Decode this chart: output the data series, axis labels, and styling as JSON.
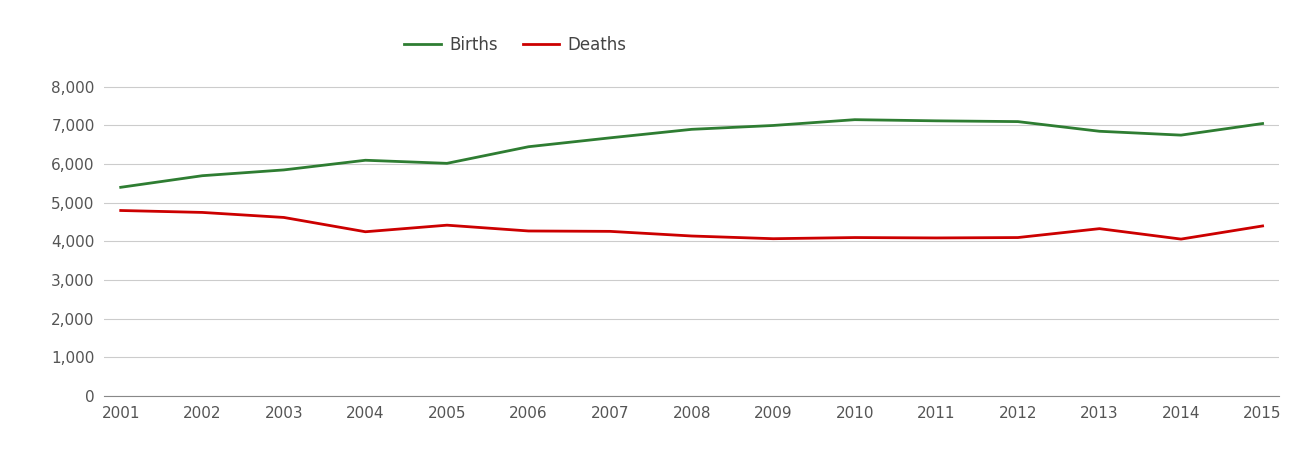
{
  "years": [
    2001,
    2002,
    2003,
    2004,
    2005,
    2006,
    2007,
    2008,
    2009,
    2010,
    2011,
    2012,
    2013,
    2014,
    2015
  ],
  "births": [
    5400,
    5700,
    5850,
    6100,
    6020,
    6450,
    6680,
    6900,
    7000,
    7150,
    7120,
    7100,
    6850,
    6750,
    7050
  ],
  "deaths": [
    4800,
    4750,
    4620,
    4250,
    4420,
    4270,
    4260,
    4140,
    4070,
    4100,
    4090,
    4100,
    4330,
    4060,
    4400
  ],
  "births_color": "#2e7d32",
  "deaths_color": "#cc0000",
  "background_color": "#ffffff",
  "grid_color": "#cccccc",
  "ylim": [
    0,
    8500
  ],
  "yticks": [
    0,
    1000,
    2000,
    3000,
    4000,
    5000,
    6000,
    7000,
    8000
  ],
  "ytick_labels": [
    "0",
    "1,000",
    "2,000",
    "3,000",
    "4,000",
    "5,000",
    "6,000",
    "7,000",
    "8,000"
  ],
  "legend_labels": [
    "Births",
    "Deaths"
  ],
  "line_width": 2.0,
  "tick_fontsize": 11,
  "legend_fontsize": 12
}
